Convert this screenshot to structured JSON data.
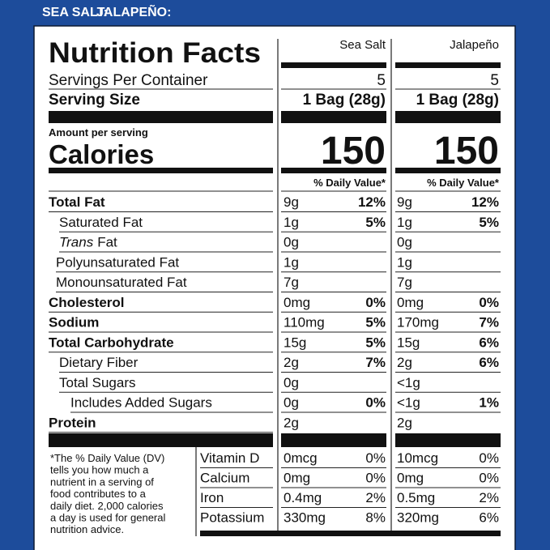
{
  "header": {
    "flavor_labels": [
      "SEA SALT:",
      "JALAPEÑO:"
    ]
  },
  "title": "Nutrition Facts",
  "columns": [
    "Sea Salt",
    "Jalapeño"
  ],
  "servings": {
    "label": "Servings Per Container",
    "values": [
      "5",
      "5"
    ]
  },
  "serving_size": {
    "label": "Serving Size",
    "values": [
      "1 Bag (28g)",
      "1 Bag (28g)"
    ]
  },
  "amount_per_serving": "Amount per serving",
  "calories": {
    "label": "Calories",
    "values": [
      "150",
      "150"
    ]
  },
  "daily_value_header": [
    "% Daily Value*",
    "% Daily Value*"
  ],
  "nutrients": [
    {
      "label": "Total Fat",
      "values": [
        [
          "9g",
          "12%"
        ],
        [
          "9g",
          "12%"
        ]
      ]
    },
    {
      "label": "Saturated Fat",
      "values": [
        [
          "1g",
          "5%"
        ],
        [
          "1g",
          "5%"
        ]
      ]
    },
    {
      "label_prefix": "Trans",
      "label": "Fat",
      "values": [
        [
          "0g",
          null
        ],
        [
          "0g",
          null
        ]
      ]
    },
    {
      "label": "Polyunsaturated Fat",
      "values": [
        [
          "1g",
          null
        ],
        [
          "1g",
          null
        ]
      ]
    },
    {
      "label": "Monounsaturated Fat",
      "values": [
        [
          "7g",
          null
        ],
        [
          "7g",
          null
        ]
      ]
    },
    {
      "label": "Cholesterol",
      "values": [
        [
          "0mg",
          "0%"
        ],
        [
          "0mg",
          "0%"
        ]
      ]
    },
    {
      "label": "Sodium",
      "values": [
        [
          "110mg",
          "5%"
        ],
        [
          "170mg",
          "7%"
        ]
      ]
    },
    {
      "label": "Total Carbohydrate",
      "values": [
        [
          "15g",
          "5%"
        ],
        [
          "15g",
          "6%"
        ]
      ]
    },
    {
      "label": "Dietary Fiber",
      "values": [
        [
          "2g",
          "7%"
        ],
        [
          "2g",
          "6%"
        ]
      ]
    },
    {
      "label": "Total Sugars",
      "values": [
        [
          "0g",
          null
        ],
        [
          "<1g",
          null
        ]
      ]
    },
    {
      "label": "Includes Added Sugars",
      "values": [
        [
          "0g",
          "0%"
        ],
        [
          "<1g",
          "1%"
        ]
      ]
    },
    {
      "label": "Protein",
      "values": [
        [
          "2g",
          null
        ],
        [
          "2g",
          null
        ]
      ]
    }
  ],
  "footnote": [
    "*The % Daily Value (DV)",
    "tells you how much a",
    "nutrient in a serving of",
    "food contributes to a",
    "daily diet. 2,000 calories",
    "a day is used for general",
    "nutrition advice."
  ],
  "vitamins": [
    {
      "label": "Vitamin D",
      "values": [
        [
          "0mcg",
          "0%"
        ],
        [
          "10mcg",
          "0%"
        ]
      ]
    },
    {
      "label": "Calcium",
      "values": [
        [
          "0mg",
          "0%"
        ],
        [
          "0mg",
          "0%"
        ]
      ]
    },
    {
      "label": "Iron",
      "values": [
        [
          "0.4mg",
          "2%"
        ],
        [
          "0.5mg",
          "2%"
        ]
      ]
    },
    {
      "label": "Potassium",
      "values": [
        [
          "330mg",
          "8%"
        ],
        [
          "320mg",
          "6%"
        ]
      ]
    }
  ]
}
